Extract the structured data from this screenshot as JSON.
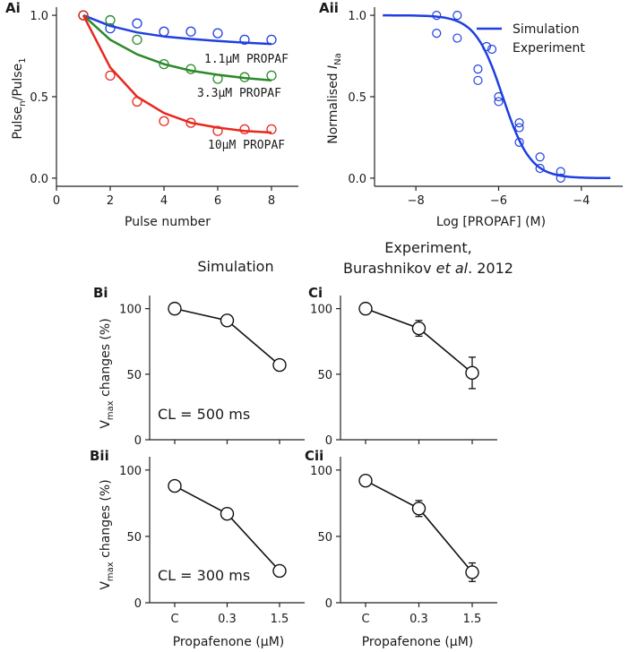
{
  "chart_data": [
    {
      "id": "Ai",
      "type": "line",
      "panel_label": "Ai",
      "xlabel": "Pulse number",
      "ylabel_main": "Pulse",
      "ylabel_sub_n": "n",
      "ylabel_mid": "/Pulse",
      "ylabel_sub_1": "1",
      "xlim": [
        0,
        9
      ],
      "ylim": [
        -0.05,
        1.05
      ],
      "xticks": [
        0,
        2,
        4,
        6,
        8
      ],
      "yticks": [
        0.0,
        0.5,
        1.0
      ],
      "ytick_labels": [
        "0.0",
        "0.5",
        "1.0"
      ],
      "series": [
        {
          "name": "1.1μM PROPAF",
          "label": "1.1μM PROPAF",
          "color": "#1f3fe0",
          "x": [
            1,
            2,
            3,
            4,
            5,
            6,
            7,
            8
          ],
          "points": [
            1.0,
            0.92,
            0.95,
            0.9,
            0.9,
            0.89,
            0.85,
            0.85
          ],
          "curve": [
            1.0,
            0.935,
            0.895,
            0.87,
            0.855,
            0.842,
            0.832,
            0.824
          ]
        },
        {
          "name": "3.3μM PROPAF",
          "label": "3.3μM PROPAF",
          "color": "#2a8a2a",
          "x": [
            1,
            2,
            3,
            4,
            5,
            6,
            7,
            8
          ],
          "points": [
            1.0,
            0.97,
            0.85,
            0.7,
            0.67,
            0.61,
            0.62,
            0.63
          ],
          "curve": [
            1.0,
            0.85,
            0.76,
            0.7,
            0.66,
            0.635,
            0.615,
            0.6
          ]
        },
        {
          "name": "10μM PROPAF",
          "label": "10μM PROPAF",
          "color": "#e8281e",
          "x": [
            1,
            2,
            3,
            4,
            5,
            6,
            7,
            8
          ],
          "points": [
            1.0,
            0.63,
            0.47,
            0.35,
            0.34,
            0.29,
            0.3,
            0.3
          ],
          "curve": [
            1.0,
            0.68,
            0.5,
            0.4,
            0.34,
            0.31,
            0.29,
            0.28
          ]
        }
      ]
    },
    {
      "id": "Aii",
      "type": "line",
      "panel_label": "Aii",
      "xlabel": "Log [PROPAF] (M)",
      "ylabel_main": "Normalised ",
      "ylabel_italic": "I",
      "ylabel_sub": "Na",
      "xlim": [
        -9,
        -3
      ],
      "ylim": [
        -0.05,
        1.05
      ],
      "xticks": [
        -8,
        -6,
        -4
      ],
      "xtick_labels": [
        "−8",
        "−6",
        "−4"
      ],
      "yticks": [
        0.0,
        0.5,
        1.0
      ],
      "ytick_labels": [
        "0.0",
        "0.5",
        "1.0"
      ],
      "color": "#1f3fe0",
      "legend": {
        "simulation": "Simulation",
        "experiment": "Experiment",
        "position": "top-right"
      },
      "simulation": {
        "ic50_log": -5.9,
        "hill": 1.3,
        "x_start": -8.8,
        "x_end": -3.3
      },
      "experiment": {
        "x": [
          -7.5,
          -7.5,
          -7.0,
          -7.0,
          -6.5,
          -6.5,
          -6.0,
          -6.0,
          -5.5,
          -5.5,
          -5.5,
          -5.0,
          -5.0,
          -4.5,
          -4.5
        ],
        "y": [
          1.0,
          0.89,
          1.0,
          0.86,
          0.67,
          0.6,
          0.5,
          0.47,
          0.34,
          0.31,
          0.22,
          0.13,
          0.06,
          0.04,
          0.0
        ]
      }
    },
    {
      "id": "Bi",
      "type": "line",
      "panel_label": "Bi",
      "categories": [
        "C",
        "0.3",
        "1.5"
      ],
      "values": [
        100,
        91,
        57
      ],
      "errors": [
        0,
        0,
        0
      ],
      "ylim": [
        0,
        110
      ],
      "yticks": [
        0,
        50,
        100
      ],
      "note": "CL = 500 ms"
    },
    {
      "id": "Ci",
      "type": "line",
      "panel_label": "Ci",
      "categories": [
        "C",
        "0.3",
        "1.5"
      ],
      "values": [
        100,
        85,
        51
      ],
      "errors": [
        0,
        6,
        12
      ],
      "ylim": [
        0,
        110
      ],
      "yticks": [
        0,
        50,
        100
      ],
      "note": ""
    },
    {
      "id": "Bii",
      "type": "line",
      "panel_label": "Bii",
      "categories": [
        "C",
        "0.3",
        "1.5"
      ],
      "values": [
        88,
        67,
        24
      ],
      "errors": [
        0,
        0,
        0
      ],
      "ylim": [
        0,
        110
      ],
      "yticks": [
        0,
        50,
        100
      ],
      "note": "CL = 300 ms"
    },
    {
      "id": "Cii",
      "type": "line",
      "panel_label": "Cii",
      "categories": [
        "C",
        "0.3",
        "1.5"
      ],
      "values": [
        92,
        71,
        23
      ],
      "errors": [
        0,
        6,
        7
      ],
      "ylim": [
        0,
        110
      ],
      "yticks": [
        0,
        50,
        100
      ],
      "note": ""
    }
  ],
  "headers": {
    "simulation": "Simulation",
    "experiment_line1": "Experiment,",
    "experiment_line2_a": "Burashnikov ",
    "experiment_line2_b": "et al",
    "experiment_line2_c": ". 2012"
  },
  "b_axis": {
    "ylabel_symbol": "V",
    "ylabel_sub": "max",
    "ylabel_rest": " changes (%)",
    "xlabel": "Propafenone (μM)"
  }
}
